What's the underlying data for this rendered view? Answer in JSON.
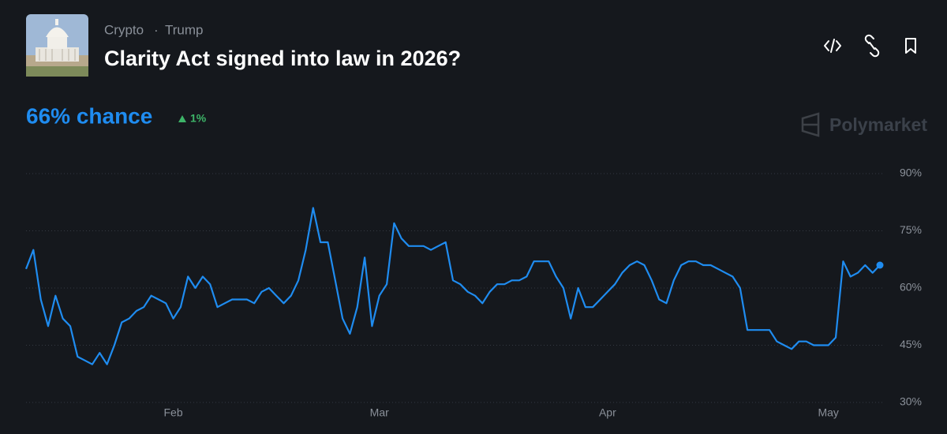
{
  "header": {
    "breadcrumb": [
      "Crypto",
      "Trump"
    ],
    "separator": "·",
    "title": "Clarity Act signed into law in 2026?"
  },
  "summary": {
    "chance": "66% chance",
    "change": "1%"
  },
  "brand": "Polymarket",
  "chart_data": {
    "type": "line",
    "categories": [
      null,
      null,
      null,
      null,
      null,
      null,
      null,
      null,
      null,
      null,
      null,
      null,
      null,
      null,
      null,
      null,
      null,
      null,
      null,
      null,
      "Feb",
      null,
      null,
      null,
      null,
      null,
      null,
      null,
      null,
      null,
      null,
      null,
      null,
      null,
      null,
      null,
      null,
      null,
      null,
      null,
      null,
      null,
      null,
      null,
      null,
      null,
      null,
      null,
      "Mar",
      null,
      null,
      null,
      null,
      null,
      null,
      null,
      null,
      null,
      null,
      null,
      null,
      null,
      null,
      null,
      null,
      null,
      null,
      null,
      null,
      null,
      null,
      null,
      null,
      null,
      null,
      null,
      null,
      null,
      null,
      "Apr",
      null,
      null,
      null,
      null,
      null,
      null,
      null,
      null,
      null,
      null,
      null,
      null,
      null,
      null,
      null,
      null,
      null,
      null,
      null,
      null,
      null,
      null,
      null,
      null,
      null,
      null,
      null,
      null,
      null,
      "May",
      null,
      null,
      null,
      null,
      null,
      null,
      null
    ],
    "values": [
      65,
      70,
      57,
      50,
      58,
      52,
      50,
      42,
      41,
      40,
      43,
      40,
      45,
      51,
      52,
      54,
      55,
      58,
      57,
      56,
      52,
      55,
      63,
      60,
      63,
      61,
      55,
      56,
      57,
      57,
      57,
      56,
      59,
      60,
      58,
      56,
      58,
      62,
      70,
      81,
      72,
      72,
      62,
      52,
      48,
      55,
      68,
      50,
      58,
      61,
      77,
      73,
      71,
      71,
      71,
      70,
      71,
      72,
      62,
      61,
      59,
      58,
      56,
      59,
      61,
      61,
      62,
      62,
      63,
      67,
      67,
      67,
      63,
      60,
      52,
      60,
      55,
      55,
      57,
      59,
      61,
      64,
      66,
      67,
      66,
      62,
      57,
      56,
      62,
      66,
      67,
      67,
      66,
      66,
      65,
      64,
      63,
      60,
      49,
      49,
      49,
      49,
      46,
      45,
      44,
      46,
      46,
      45,
      45,
      45,
      47,
      67,
      63,
      64,
      66,
      64,
      66
    ],
    "color": "#1f8cf0",
    "ylim": [
      30,
      90
    ],
    "yticks": [
      {
        "value": 30,
        "label": "30%"
      },
      {
        "value": 45,
        "label": "45%"
      },
      {
        "value": 60,
        "label": "60%"
      },
      {
        "value": 75,
        "label": "75%"
      },
      {
        "value": 90,
        "label": "90%"
      }
    ],
    "grid": true
  }
}
